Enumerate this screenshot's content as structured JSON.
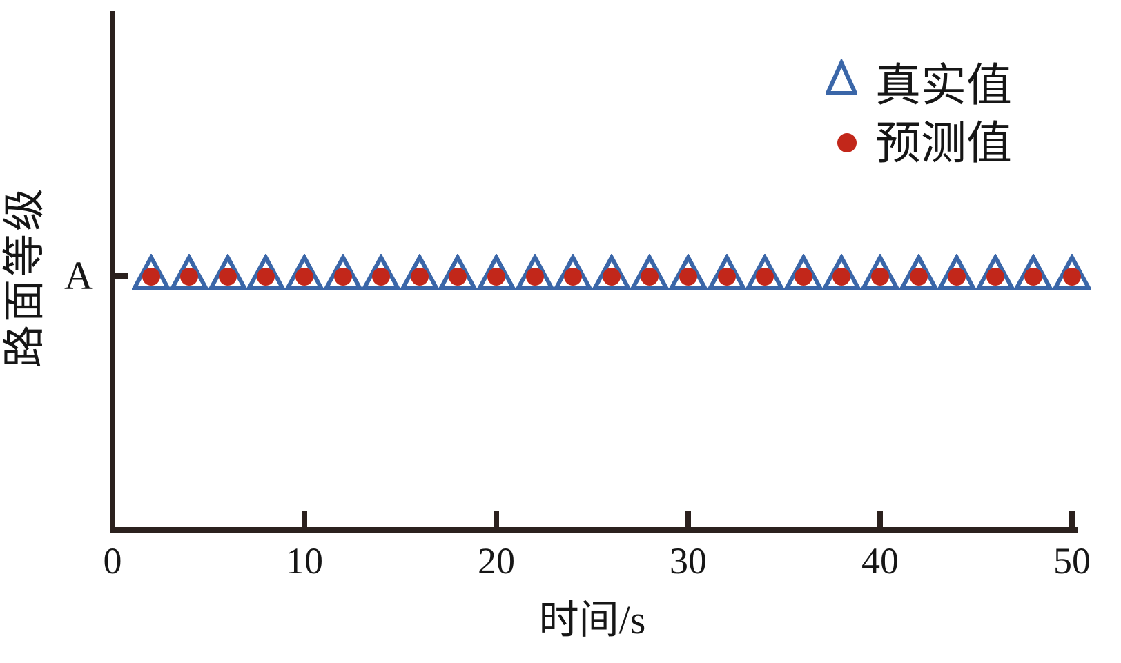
{
  "chart_data": {
    "type": "scatter",
    "title": "",
    "xlabel": "时间/s",
    "ylabel": "路面等级",
    "xlim": [
      0,
      50
    ],
    "xticks": [
      "0",
      "10",
      "20",
      "30",
      "40",
      "50"
    ],
    "yticks": [
      "A"
    ],
    "grid": false,
    "legend_position": "upper-right-inside",
    "x": [
      2,
      4,
      6,
      8,
      10,
      12,
      14,
      16,
      18,
      20,
      22,
      24,
      26,
      28,
      30,
      32,
      34,
      36,
      38,
      40,
      42,
      44,
      46,
      48,
      50
    ],
    "series": [
      {
        "name": "真实值",
        "marker": "hollow-triangle-up",
        "color": "#3a66a8",
        "y_level": "A"
      },
      {
        "name": "预测值",
        "marker": "filled-circle",
        "color": "#c2271a",
        "y_level": "A"
      }
    ]
  },
  "colors": {
    "background": "#ffffff",
    "axis": "#2b211e",
    "text": "#161616",
    "true_value_blue": "#3a66a8",
    "predicted_value_red": "#c2271a"
  }
}
